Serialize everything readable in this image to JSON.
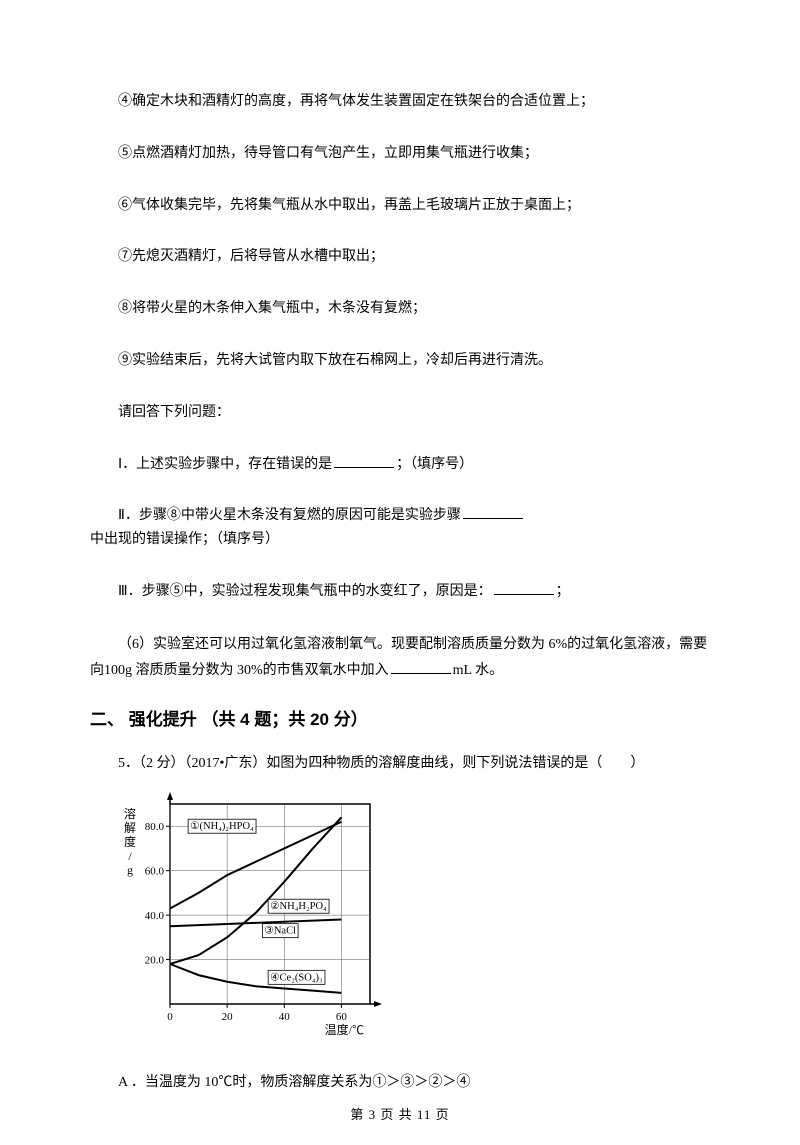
{
  "steps": {
    "s4": "④确定木块和酒精灯的高度，再将气体发生装置固定在铁架台的合适位置上；",
    "s5": "⑤点燃酒精灯加热，待导管口有气泡产生，立即用集气瓶进行收集；",
    "s6": "⑥气体收集完毕，先将集气瓶从水中取出，再盖上毛玻璃片正放于桌面上；",
    "s7": "⑦先熄灭酒精灯，后将导管从水槽中取出；",
    "s8": "⑧将带火星的木条伸入集气瓶中，木条没有复燃；",
    "s9": "⑨实验结束后，先将大试管内取下放在石棉网上，冷却后再进行清洗。"
  },
  "prompts": {
    "answer_below": "请回答下列问题：",
    "p1_a": "Ⅰ．上述实验步骤中，存在错误的是",
    "p1_b": "；（填序号）",
    "p2_a": "Ⅱ．步骤⑧中带火星木条没有复燃的原因可能是实验步骤",
    "p2_b": "中出现的错误操作；（填序号）",
    "p3_a": "Ⅲ．步骤⑤中，实验过程发现集气瓶中的水变红了，原因是：",
    "p3_b": "；",
    "p6_a": "（6）实验室还可以用过氧化氢溶液制氧气。现要配制溶质质量分数为 6%的过氧化氢溶液，需要向100g 溶质质量分数为 30%的市售双氧水中加入",
    "p6_b": "mL 水。"
  },
  "section2": {
    "title": "二、 强化提升 （共 4 题；共 20 分）",
    "q5_intro": "5．（2 分）（2017•广东）如图为四种物质的溶解度曲线，则下列说法错误的是（　　）",
    "optA": "A ．当温度为 10℃时，物质溶解度关系为①＞③＞②＞④"
  },
  "chart": {
    "type": "line",
    "background_color": "#ffffff",
    "axis_color": "#000000",
    "grid_color": "#555555",
    "xlabel": "温度/℃",
    "ylabel": "溶解度/g",
    "xlim": [
      0,
      70
    ],
    "ylim": [
      0,
      90
    ],
    "xticks": [
      0,
      20,
      40,
      60
    ],
    "yticks": [
      20,
      40,
      60,
      80
    ],
    "ytick_labels": [
      "20.0",
      "40.0",
      "60.0",
      "80.0"
    ],
    "label_fontsize": 12,
    "tick_fontsize": 11,
    "line_color": "#000000",
    "line_width": 2,
    "series": [
      {
        "label": "①(NH₄)₂HPO₄",
        "points": [
          [
            0,
            43
          ],
          [
            10,
            50
          ],
          [
            20,
            58
          ],
          [
            30,
            64
          ],
          [
            40,
            70
          ],
          [
            50,
            76
          ],
          [
            60,
            82
          ]
        ]
      },
      {
        "label": "②NH₄H₂PO₄",
        "points": [
          [
            0,
            18
          ],
          [
            10,
            22
          ],
          [
            20,
            30
          ],
          [
            30,
            41
          ],
          [
            40,
            55
          ],
          [
            50,
            70
          ],
          [
            60,
            84
          ]
        ]
      },
      {
        "label": "③NaCl",
        "points": [
          [
            0,
            35
          ],
          [
            10,
            35.5
          ],
          [
            20,
            36
          ],
          [
            30,
            36.5
          ],
          [
            40,
            37
          ],
          [
            50,
            37.5
          ],
          [
            60,
            38
          ]
        ]
      },
      {
        "label": "④Ce₂(SO₄)₃",
        "points": [
          [
            0,
            18
          ],
          [
            10,
            13
          ],
          [
            20,
            10
          ],
          [
            30,
            8
          ],
          [
            40,
            7
          ],
          [
            50,
            6
          ],
          [
            60,
            5
          ]
        ]
      }
    ],
    "series_label_positions": [
      {
        "label": "①(NH₄)₂HPO₄",
        "x": 6,
        "y": 80
      },
      {
        "label": "②NH₄H₂PO₄",
        "x": 34,
        "y": 44
      },
      {
        "label": "③NaCl",
        "x": 32,
        "y": 33
      },
      {
        "label": "④Ce₂(SO₄)₃",
        "x": 34,
        "y": 12
      }
    ]
  },
  "footer": {
    "text": "第 3 页 共 11 页"
  }
}
